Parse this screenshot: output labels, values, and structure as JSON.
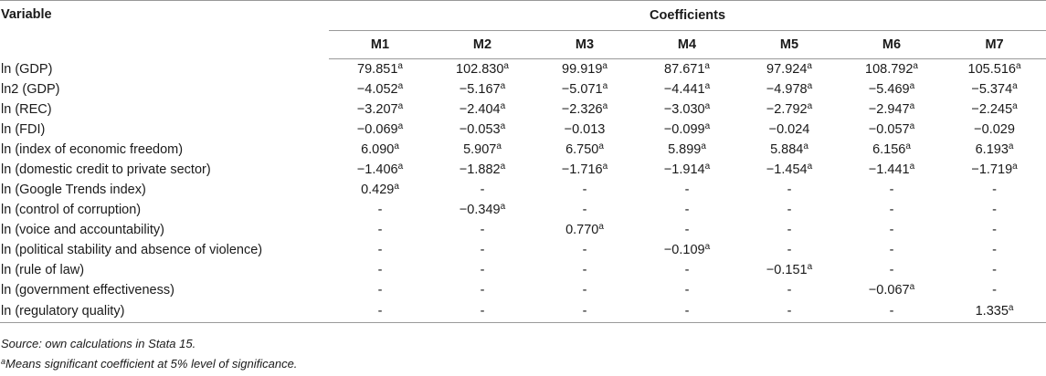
{
  "header": {
    "variable_label": "Variable",
    "coefficients_label": "Coefficients",
    "models": [
      "M1",
      "M2",
      "M3",
      "M4",
      "M5",
      "M6",
      "M7"
    ]
  },
  "rows": [
    {
      "label": "ln (GDP)",
      "values": [
        [
          "79.851",
          "a"
        ],
        [
          "102.830",
          "a"
        ],
        [
          "99.919",
          "a"
        ],
        [
          "87.671",
          "a"
        ],
        [
          "97.924",
          "a"
        ],
        [
          "108.792",
          "a"
        ],
        [
          "105.516",
          "a"
        ]
      ]
    },
    {
      "label": "ln2 (GDP)",
      "values": [
        [
          "−4.052",
          "a"
        ],
        [
          "−5.167",
          "a"
        ],
        [
          "−5.071",
          "a"
        ],
        [
          "−4.441",
          "a"
        ],
        [
          "−4.978",
          "a"
        ],
        [
          "−5.469",
          "a"
        ],
        [
          "−5.374",
          "a"
        ]
      ]
    },
    {
      "label": "ln (REC)",
      "values": [
        [
          "−3.207",
          "a"
        ],
        [
          "−2.404",
          "a"
        ],
        [
          "−2.326",
          "a"
        ],
        [
          "−3.030",
          "a"
        ],
        [
          "−2.792",
          "a"
        ],
        [
          "−2.947",
          "a"
        ],
        [
          "−2.245",
          "a"
        ]
      ]
    },
    {
      "label": "ln (FDI)",
      "values": [
        [
          "−0.069",
          "a"
        ],
        [
          "−0.053",
          "a"
        ],
        [
          "−0.013",
          ""
        ],
        [
          "−0.099",
          "a"
        ],
        [
          "−0.024",
          ""
        ],
        [
          "−0.057",
          "a"
        ],
        [
          "−0.029",
          ""
        ]
      ]
    },
    {
      "label": "ln (index of economic freedom)",
      "values": [
        [
          "6.090",
          "a"
        ],
        [
          "5.907",
          "a"
        ],
        [
          "6.750",
          "a"
        ],
        [
          "5.899",
          "a"
        ],
        [
          "5.884",
          "a"
        ],
        [
          "6.156",
          "a"
        ],
        [
          "6.193",
          "a"
        ]
      ]
    },
    {
      "label": "ln (domestic credit to private sector)",
      "values": [
        [
          "−1.406",
          "a"
        ],
        [
          "−1.882",
          "a"
        ],
        [
          "−1.716",
          "a"
        ],
        [
          "−1.914",
          "a"
        ],
        [
          "−1.454",
          "a"
        ],
        [
          "−1.441",
          "a"
        ],
        [
          "−1.719",
          "a"
        ]
      ]
    },
    {
      "label": "ln (Google Trends index)",
      "values": [
        [
          "0.429",
          "a"
        ],
        [
          "-",
          ""
        ],
        [
          "-",
          ""
        ],
        [
          "-",
          ""
        ],
        [
          "-",
          ""
        ],
        [
          "-",
          ""
        ],
        [
          "-",
          ""
        ]
      ]
    },
    {
      "label": "ln (control of corruption)",
      "values": [
        [
          "-",
          ""
        ],
        [
          "−0.349",
          "a"
        ],
        [
          "-",
          ""
        ],
        [
          "-",
          ""
        ],
        [
          "-",
          ""
        ],
        [
          "-",
          ""
        ],
        [
          "-",
          ""
        ]
      ]
    },
    {
      "label": "ln (voice and accountability)",
      "values": [
        [
          "-",
          ""
        ],
        [
          "-",
          ""
        ],
        [
          "0.770",
          "a"
        ],
        [
          "-",
          ""
        ],
        [
          "-",
          ""
        ],
        [
          "-",
          ""
        ],
        [
          "-",
          ""
        ]
      ]
    },
    {
      "label": "ln (political stability and absence of violence)",
      "values": [
        [
          "-",
          ""
        ],
        [
          "-",
          ""
        ],
        [
          "-",
          ""
        ],
        [
          "−0.109",
          "a"
        ],
        [
          "-",
          ""
        ],
        [
          "-",
          ""
        ],
        [
          "-",
          ""
        ]
      ]
    },
    {
      "label": "ln (rule of law)",
      "values": [
        [
          "-",
          ""
        ],
        [
          "-",
          ""
        ],
        [
          "-",
          ""
        ],
        [
          "-",
          ""
        ],
        [
          "−0.151",
          "a"
        ],
        [
          "-",
          ""
        ],
        [
          "-",
          ""
        ]
      ]
    },
    {
      "label": "ln (government effectiveness)",
      "values": [
        [
          "-",
          ""
        ],
        [
          "-",
          ""
        ],
        [
          "-",
          ""
        ],
        [
          "-",
          ""
        ],
        [
          "-",
          ""
        ],
        [
          "−0.067",
          "a"
        ],
        [
          "-",
          ""
        ]
      ]
    },
    {
      "label": "ln (regulatory quality)",
      "values": [
        [
          "-",
          ""
        ],
        [
          "-",
          ""
        ],
        [
          "-",
          ""
        ],
        [
          "-",
          ""
        ],
        [
          "-",
          ""
        ],
        [
          "-",
          ""
        ],
        [
          "1.335",
          "a"
        ]
      ]
    }
  ],
  "notes": {
    "source": "Source: own calculations in Stata 15.",
    "footnote_mark": "a",
    "footnote_text": "Means significant coefficient at 5% level of significance."
  }
}
